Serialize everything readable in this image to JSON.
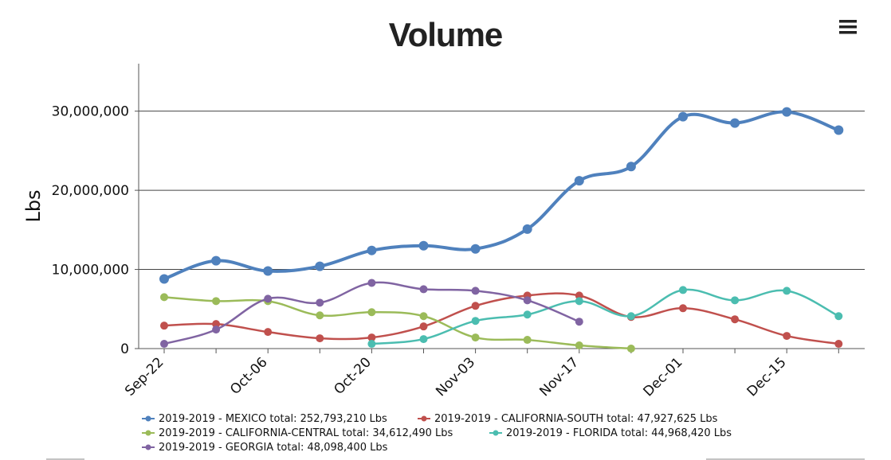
{
  "chart_data": {
    "type": "line",
    "title": "Volume",
    "ylabel": "Lbs",
    "xlabel": "",
    "ylim": [
      0,
      36000000
    ],
    "yticks": [
      0,
      10000000,
      20000000,
      30000000
    ],
    "ytick_labels": [
      "0",
      "10,000,000",
      "20,000,000",
      "30,000,000"
    ],
    "x_points": [
      "Sep-22",
      "Sep-29",
      "Oct-06",
      "Oct-13",
      "Oct-20",
      "Oct-27",
      "Nov-03",
      "Nov-10",
      "Nov-17",
      "Nov-24",
      "Dec-01",
      "Dec-08",
      "Dec-15",
      "Dec-22"
    ],
    "x_tick_labels": [
      "Sep-22",
      "Oct-06",
      "Oct-20",
      "Nov-03",
      "Nov-17",
      "Dec-01",
      "Dec-15"
    ],
    "grid": "horizontal",
    "legend_position": "bottom",
    "series": [
      {
        "name": "2019-2019 - MEXICO",
        "legend": "2019-2019 - MEXICO total: 252,793,210 Lbs",
        "color": "#4f81bd",
        "values": [
          8800000,
          11100000,
          9800000,
          10400000,
          12400000,
          13000000,
          12600000,
          15100000,
          21200000,
          23000000,
          29300000,
          28500000,
          29900000,
          27600000
        ]
      },
      {
        "name": "2019-2019 - CALIFORNIA-SOUTH",
        "legend": "2019-2019 - CALIFORNIA-SOUTH total: 47,927,625 Lbs",
        "color": "#c0504d",
        "values": [
          2900000,
          3100000,
          2100000,
          1300000,
          1400000,
          2800000,
          5400000,
          6700000,
          6700000,
          4000000,
          5100000,
          3700000,
          1600000,
          600000
        ]
      },
      {
        "name": "2019-2019 - CALIFORNIA-CENTRAL",
        "legend": "2019-2019 - CALIFORNIA-CENTRAL total: 34,612,490 Lbs",
        "color": "#9bbb59",
        "values": [
          6500000,
          6000000,
          6000000,
          4200000,
          4600000,
          4100000,
          1400000,
          1100000,
          400000,
          0,
          null,
          null,
          null,
          null
        ]
      },
      {
        "name": "2019-2019 - FLORIDA",
        "legend": "2019-2019 - FLORIDA total: 44,968,420 Lbs",
        "color": "#4bbdb0",
        "values": [
          null,
          null,
          null,
          null,
          600000,
          1200000,
          3500000,
          4300000,
          6000000,
          4100000,
          7400000,
          6100000,
          7300000,
          4100000
        ]
      },
      {
        "name": "2019-2019 - GEORGIA",
        "legend": "2019-2019 - GEORGIA total: 48,098,400 Lbs",
        "color": "#8064a2",
        "values": [
          600000,
          2400000,
          6300000,
          5800000,
          8300000,
          7500000,
          7300000,
          6100000,
          3400000,
          null,
          null,
          null,
          null,
          null
        ]
      }
    ]
  },
  "menu": {
    "icon": "hamburger-menu-icon"
  }
}
